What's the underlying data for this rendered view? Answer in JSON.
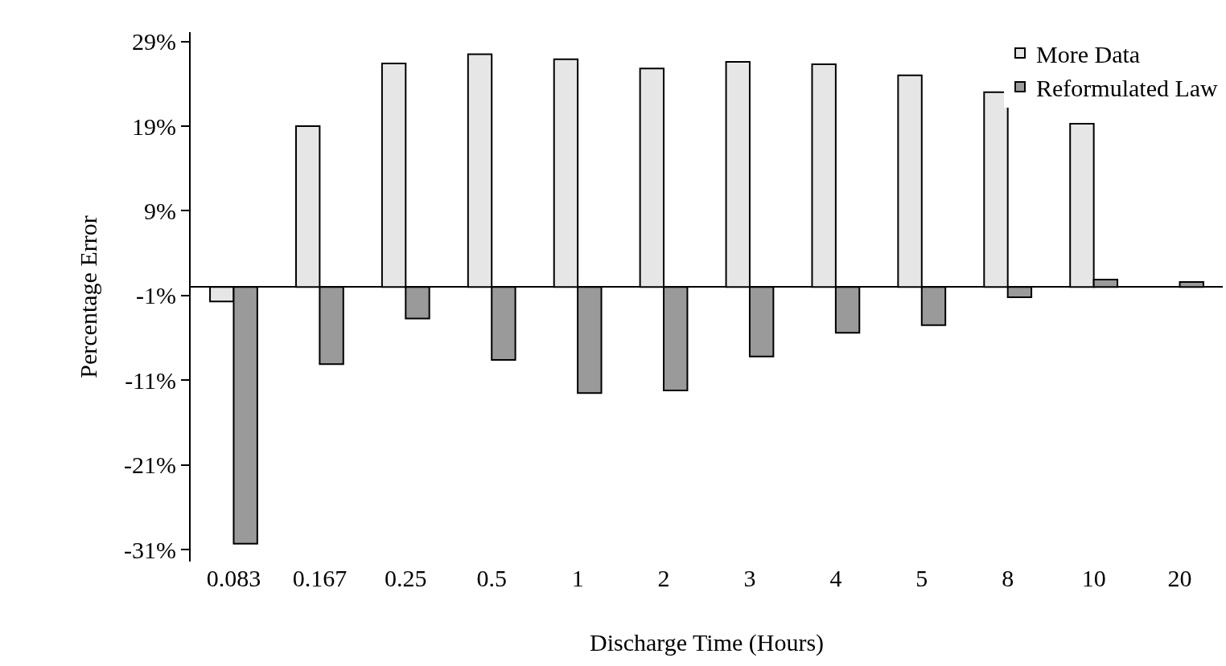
{
  "chart_data": {
    "type": "bar",
    "xlabel": "Discharge Time (Hours)",
    "ylabel": "Percentage Error",
    "categories": [
      "0.083",
      "0.167",
      "0.25",
      "0.5",
      "1",
      "2",
      "3",
      "4",
      "5",
      "8",
      "10",
      "20"
    ],
    "series": [
      {
        "name": "More Data",
        "color": "#e6e6e6",
        "values": [
          -1.7,
          19.0,
          26.4,
          27.5,
          26.9,
          25.8,
          26.6,
          26.3,
          25.0,
          23.0,
          19.3,
          null
        ]
      },
      {
        "name": "Reformulated Law",
        "color": "#9a9a9a",
        "values": [
          -30.3,
          -9.1,
          -3.7,
          -8.6,
          -12.5,
          -12.2,
          -8.2,
          -5.4,
          -4.5,
          -1.2,
          0.9,
          0.6
        ]
      }
    ],
    "ylim": [
      -32.4,
      30.1
    ],
    "yticks": [
      {
        "value": 29,
        "label": "29%"
      },
      {
        "value": 19,
        "label": "19%"
      },
      {
        "value": 9,
        "label": "9%"
      },
      {
        "value": -1,
        "label": "-1%"
      },
      {
        "value": -11,
        "label": "-11%"
      },
      {
        "value": -21,
        "label": "-21%"
      },
      {
        "value": -31,
        "label": "-31%"
      }
    ],
    "grid": false,
    "legend": "top right"
  }
}
